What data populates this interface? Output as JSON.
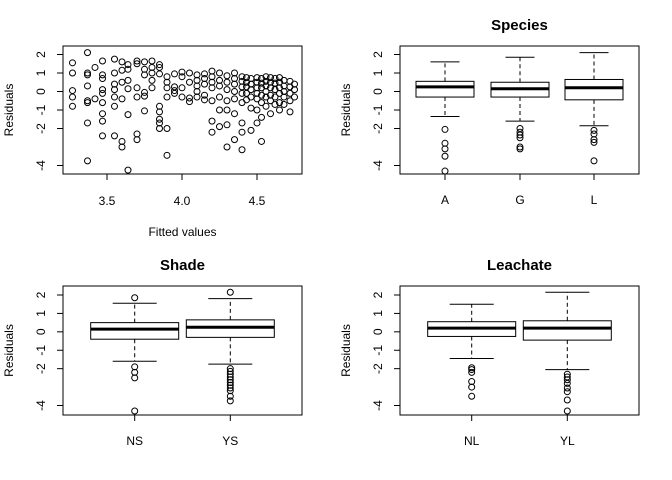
{
  "chart_data": [
    {
      "type": "scatter",
      "title": "",
      "xlabel": "Fitted values",
      "ylabel": "Residuals",
      "xlim": [
        3.2,
        4.78
      ],
      "ylim": [
        -4.5,
        2.35
      ],
      "xticks": [
        3.5,
        4.0,
        4.5
      ],
      "xtick_labels": [
        "3.5",
        "4.0",
        "4.5"
      ],
      "yticks": [
        -4,
        -2,
        -1,
        0,
        1,
        2
      ],
      "ytick_labels": [
        "-4",
        "-2",
        "-1",
        "0",
        "1",
        "2"
      ],
      "grid": false,
      "points": [
        [
          3.27,
          1.55
        ],
        [
          3.27,
          1.0
        ],
        [
          3.27,
          0.05
        ],
        [
          3.27,
          -0.3
        ],
        [
          3.27,
          -0.8
        ],
        [
          3.37,
          2.1
        ],
        [
          3.37,
          1.0
        ],
        [
          3.37,
          0.9
        ],
        [
          3.37,
          0.3
        ],
        [
          3.37,
          -0.5
        ],
        [
          3.37,
          -0.6
        ],
        [
          3.37,
          -1.7
        ],
        [
          3.37,
          -3.75
        ],
        [
          3.42,
          1.3
        ],
        [
          3.42,
          -0.4
        ],
        [
          3.47,
          1.65
        ],
        [
          3.47,
          0.9
        ],
        [
          3.47,
          0.7
        ],
        [
          3.47,
          0.1
        ],
        [
          3.47,
          -0.1
        ],
        [
          3.47,
          -0.6
        ],
        [
          3.47,
          -1.2
        ],
        [
          3.47,
          -1.6
        ],
        [
          3.47,
          -2.4
        ],
        [
          3.55,
          1.75
        ],
        [
          3.55,
          1.0
        ],
        [
          3.55,
          0.4
        ],
        [
          3.55,
          0.1
        ],
        [
          3.55,
          -0.3
        ],
        [
          3.55,
          -0.8
        ],
        [
          3.55,
          -2.4
        ],
        [
          3.6,
          1.6
        ],
        [
          3.6,
          1.15
        ],
        [
          3.6,
          0.5
        ],
        [
          3.6,
          -0.4
        ],
        [
          3.6,
          -2.7
        ],
        [
          3.6,
          -3.0
        ],
        [
          3.64,
          1.45
        ],
        [
          3.64,
          1.2
        ],
        [
          3.64,
          0.6
        ],
        [
          3.64,
          0.15
        ],
        [
          3.64,
          -1.25
        ],
        [
          3.64,
          -4.25
        ],
        [
          3.7,
          1.65
        ],
        [
          3.7,
          1.5
        ],
        [
          3.7,
          0.2
        ],
        [
          3.7,
          -0.3
        ],
        [
          3.7,
          -2.3
        ],
        [
          3.7,
          -2.6
        ],
        [
          3.75,
          1.6
        ],
        [
          3.75,
          1.2
        ],
        [
          3.75,
          0.9
        ],
        [
          3.75,
          -0.05
        ],
        [
          3.75,
          -0.25
        ],
        [
          3.75,
          -1.05
        ],
        [
          3.8,
          1.65
        ],
        [
          3.8,
          1.3
        ],
        [
          3.8,
          1.0
        ],
        [
          3.8,
          0.6
        ],
        [
          3.8,
          0.2
        ],
        [
          3.85,
          1.45
        ],
        [
          3.85,
          1.3
        ],
        [
          3.85,
          0.95
        ],
        [
          3.85,
          -0.8
        ],
        [
          3.85,
          -1.1
        ],
        [
          3.85,
          -1.5
        ],
        [
          3.85,
          -1.7
        ],
        [
          3.85,
          -2.0
        ],
        [
          3.9,
          0.8
        ],
        [
          3.9,
          0.5
        ],
        [
          3.9,
          0.2
        ],
        [
          3.9,
          -0.3
        ],
        [
          3.9,
          -2.0
        ],
        [
          3.9,
          -3.45
        ],
        [
          3.95,
          0.95
        ],
        [
          3.95,
          0.25
        ],
        [
          3.95,
          0.05
        ],
        [
          3.95,
          -0.1
        ],
        [
          4.0,
          1.05
        ],
        [
          4.0,
          0.8
        ],
        [
          4.0,
          0.2
        ],
        [
          4.0,
          -0.3
        ],
        [
          4.05,
          1.0
        ],
        [
          4.05,
          0.5
        ],
        [
          4.05,
          -0.35
        ],
        [
          4.05,
          -0.55
        ],
        [
          4.1,
          0.9
        ],
        [
          4.1,
          0.6
        ],
        [
          4.1,
          0.3
        ],
        [
          4.1,
          0.0
        ],
        [
          4.1,
          -0.3
        ],
        [
          4.15,
          0.95
        ],
        [
          4.15,
          0.7
        ],
        [
          4.15,
          0.4
        ],
        [
          4.15,
          -0.2
        ],
        [
          4.15,
          -0.45
        ],
        [
          4.2,
          1.1
        ],
        [
          4.2,
          0.8
        ],
        [
          4.2,
          0.5
        ],
        [
          4.2,
          0.2
        ],
        [
          4.2,
          -0.5
        ],
        [
          4.2,
          -1.6
        ],
        [
          4.2,
          -2.2
        ],
        [
          4.25,
          1.0
        ],
        [
          4.25,
          0.6
        ],
        [
          4.25,
          0.3
        ],
        [
          4.25,
          -0.3
        ],
        [
          4.25,
          -1.0
        ],
        [
          4.25,
          -1.9
        ],
        [
          4.3,
          0.85
        ],
        [
          4.3,
          0.5
        ],
        [
          4.3,
          0.1
        ],
        [
          4.3,
          -0.5
        ],
        [
          4.3,
          -1.0
        ],
        [
          4.3,
          -1.8
        ],
        [
          4.3,
          -3.0
        ],
        [
          4.35,
          1.0
        ],
        [
          4.35,
          0.7
        ],
        [
          4.35,
          0.4
        ],
        [
          4.35,
          0.0
        ],
        [
          4.35,
          -0.4
        ],
        [
          4.35,
          -1.2
        ],
        [
          4.35,
          -2.6
        ],
        [
          4.4,
          0.8
        ],
        [
          4.4,
          0.55
        ],
        [
          4.4,
          0.25
        ],
        [
          4.4,
          -0.1
        ],
        [
          4.4,
          -0.6
        ],
        [
          4.4,
          -1.7
        ],
        [
          4.4,
          -2.2
        ],
        [
          4.4,
          -3.15
        ],
        [
          4.43,
          0.75
        ],
        [
          4.43,
          0.5
        ],
        [
          4.43,
          0.25
        ],
        [
          4.43,
          -0.1
        ],
        [
          4.43,
          -0.45
        ],
        [
          4.46,
          0.7
        ],
        [
          4.46,
          0.4
        ],
        [
          4.46,
          0.1
        ],
        [
          4.46,
          -0.3
        ],
        [
          4.46,
          -0.9
        ],
        [
          4.46,
          -2.1
        ],
        [
          4.5,
          0.75
        ],
        [
          4.5,
          0.5
        ],
        [
          4.5,
          0.2
        ],
        [
          4.5,
          -0.1
        ],
        [
          4.5,
          -0.4
        ],
        [
          4.5,
          -1.0
        ],
        [
          4.5,
          -1.7
        ],
        [
          4.53,
          0.7
        ],
        [
          4.53,
          0.45
        ],
        [
          4.53,
          0.2
        ],
        [
          4.53,
          -0.2
        ],
        [
          4.53,
          -0.6
        ],
        [
          4.53,
          -1.4
        ],
        [
          4.53,
          -2.7
        ],
        [
          4.56,
          0.8
        ],
        [
          4.56,
          0.55
        ],
        [
          4.56,
          0.3
        ],
        [
          4.56,
          0.0
        ],
        [
          4.56,
          -0.3
        ],
        [
          4.56,
          -0.8
        ],
        [
          4.59,
          0.75
        ],
        [
          4.59,
          0.5
        ],
        [
          4.59,
          0.2
        ],
        [
          4.59,
          -0.2
        ],
        [
          4.59,
          -0.5
        ],
        [
          4.59,
          -1.2
        ],
        [
          4.62,
          0.7
        ],
        [
          4.62,
          0.45
        ],
        [
          4.62,
          0.1
        ],
        [
          4.62,
          -0.3
        ],
        [
          4.62,
          -0.7
        ],
        [
          4.65,
          0.75
        ],
        [
          4.65,
          0.5
        ],
        [
          4.65,
          0.2
        ],
        [
          4.65,
          -0.1
        ],
        [
          4.65,
          -0.6
        ],
        [
          4.65,
          -1.0
        ],
        [
          4.68,
          0.6
        ],
        [
          4.68,
          0.3
        ],
        [
          4.68,
          0.0
        ],
        [
          4.68,
          -0.3
        ],
        [
          4.68,
          -0.7
        ],
        [
          4.72,
          0.55
        ],
        [
          4.72,
          0.25
        ],
        [
          4.72,
          -0.1
        ],
        [
          4.72,
          -0.5
        ],
        [
          4.72,
          -1.1
        ],
        [
          4.75,
          0.4
        ],
        [
          4.75,
          0.1
        ],
        [
          4.75,
          -0.3
        ]
      ]
    },
    {
      "type": "boxplot",
      "title": "Species",
      "xlabel": "",
      "ylabel": "Residuals",
      "ylim": [
        -4.5,
        2.35
      ],
      "yticks": [
        -4,
        -2,
        -1,
        0,
        1,
        2
      ],
      "ytick_labels": [
        "-4",
        "-2",
        "-1",
        "0",
        "1",
        "2"
      ],
      "categories": [
        "A",
        "G",
        "L"
      ],
      "boxes": [
        {
          "whisker_low": -1.35,
          "q1": -0.3,
          "median": 0.25,
          "q3": 0.55,
          "whisker_high": 1.6,
          "outliers": [
            -2.05,
            -2.8,
            -3.1,
            -3.5,
            -4.3
          ]
        },
        {
          "whisker_low": -1.6,
          "q1": -0.3,
          "median": 0.15,
          "q3": 0.5,
          "whisker_high": 1.85,
          "outliers": [
            -2.0,
            -2.2,
            -2.35,
            -2.5,
            -3.0,
            -3.1
          ]
        },
        {
          "whisker_low": -1.85,
          "q1": -0.45,
          "median": 0.2,
          "q3": 0.65,
          "whisker_high": 2.1,
          "outliers": [
            -2.1,
            -2.3,
            -2.6,
            -2.75,
            -3.75
          ]
        }
      ]
    },
    {
      "type": "boxplot",
      "title": "Shade",
      "xlabel": "",
      "ylabel": "Residuals",
      "ylim": [
        -4.5,
        2.35
      ],
      "yticks": [
        -4,
        -2,
        -1,
        0,
        1,
        2
      ],
      "ytick_labels": [
        "-4",
        "-2",
        "-1",
        "0",
        "1",
        "2"
      ],
      "categories": [
        "NS",
        "YS"
      ],
      "boxes": [
        {
          "whisker_low": -1.6,
          "q1": -0.4,
          "median": 0.15,
          "q3": 0.5,
          "whisker_high": 1.55,
          "outliers": [
            1.85,
            -1.9,
            -2.2,
            -2.5,
            -4.3
          ]
        },
        {
          "whisker_low": -1.75,
          "q1": -0.3,
          "median": 0.25,
          "q3": 0.65,
          "whisker_high": 1.8,
          "outliers": [
            2.15,
            -2.0,
            -2.15,
            -2.3,
            -2.45,
            -2.6,
            -2.75,
            -2.9,
            -3.05,
            -3.2,
            -3.5,
            -3.75
          ]
        }
      ]
    },
    {
      "type": "boxplot",
      "title": "Leachate",
      "xlabel": "",
      "ylabel": "Residuals",
      "ylim": [
        -4.5,
        2.35
      ],
      "yticks": [
        -4,
        -2,
        -1,
        0,
        1,
        2
      ],
      "ytick_labels": [
        "-4",
        "-2",
        "-1",
        "0",
        "1",
        "2"
      ],
      "categories": [
        "NL",
        "YL"
      ],
      "boxes": [
        {
          "whisker_low": -1.45,
          "q1": -0.25,
          "median": 0.2,
          "q3": 0.55,
          "whisker_high": 1.5,
          "outliers": [
            -1.95,
            -2.05,
            -2.2,
            -2.7,
            -3.0,
            -3.5
          ]
        },
        {
          "whisker_low": -2.05,
          "q1": -0.45,
          "median": 0.2,
          "q3": 0.6,
          "whisker_high": 2.15,
          "outliers": [
            -2.3,
            -2.45,
            -2.6,
            -2.8,
            -3.05,
            -3.25,
            -3.7,
            -4.3
          ]
        }
      ]
    }
  ]
}
